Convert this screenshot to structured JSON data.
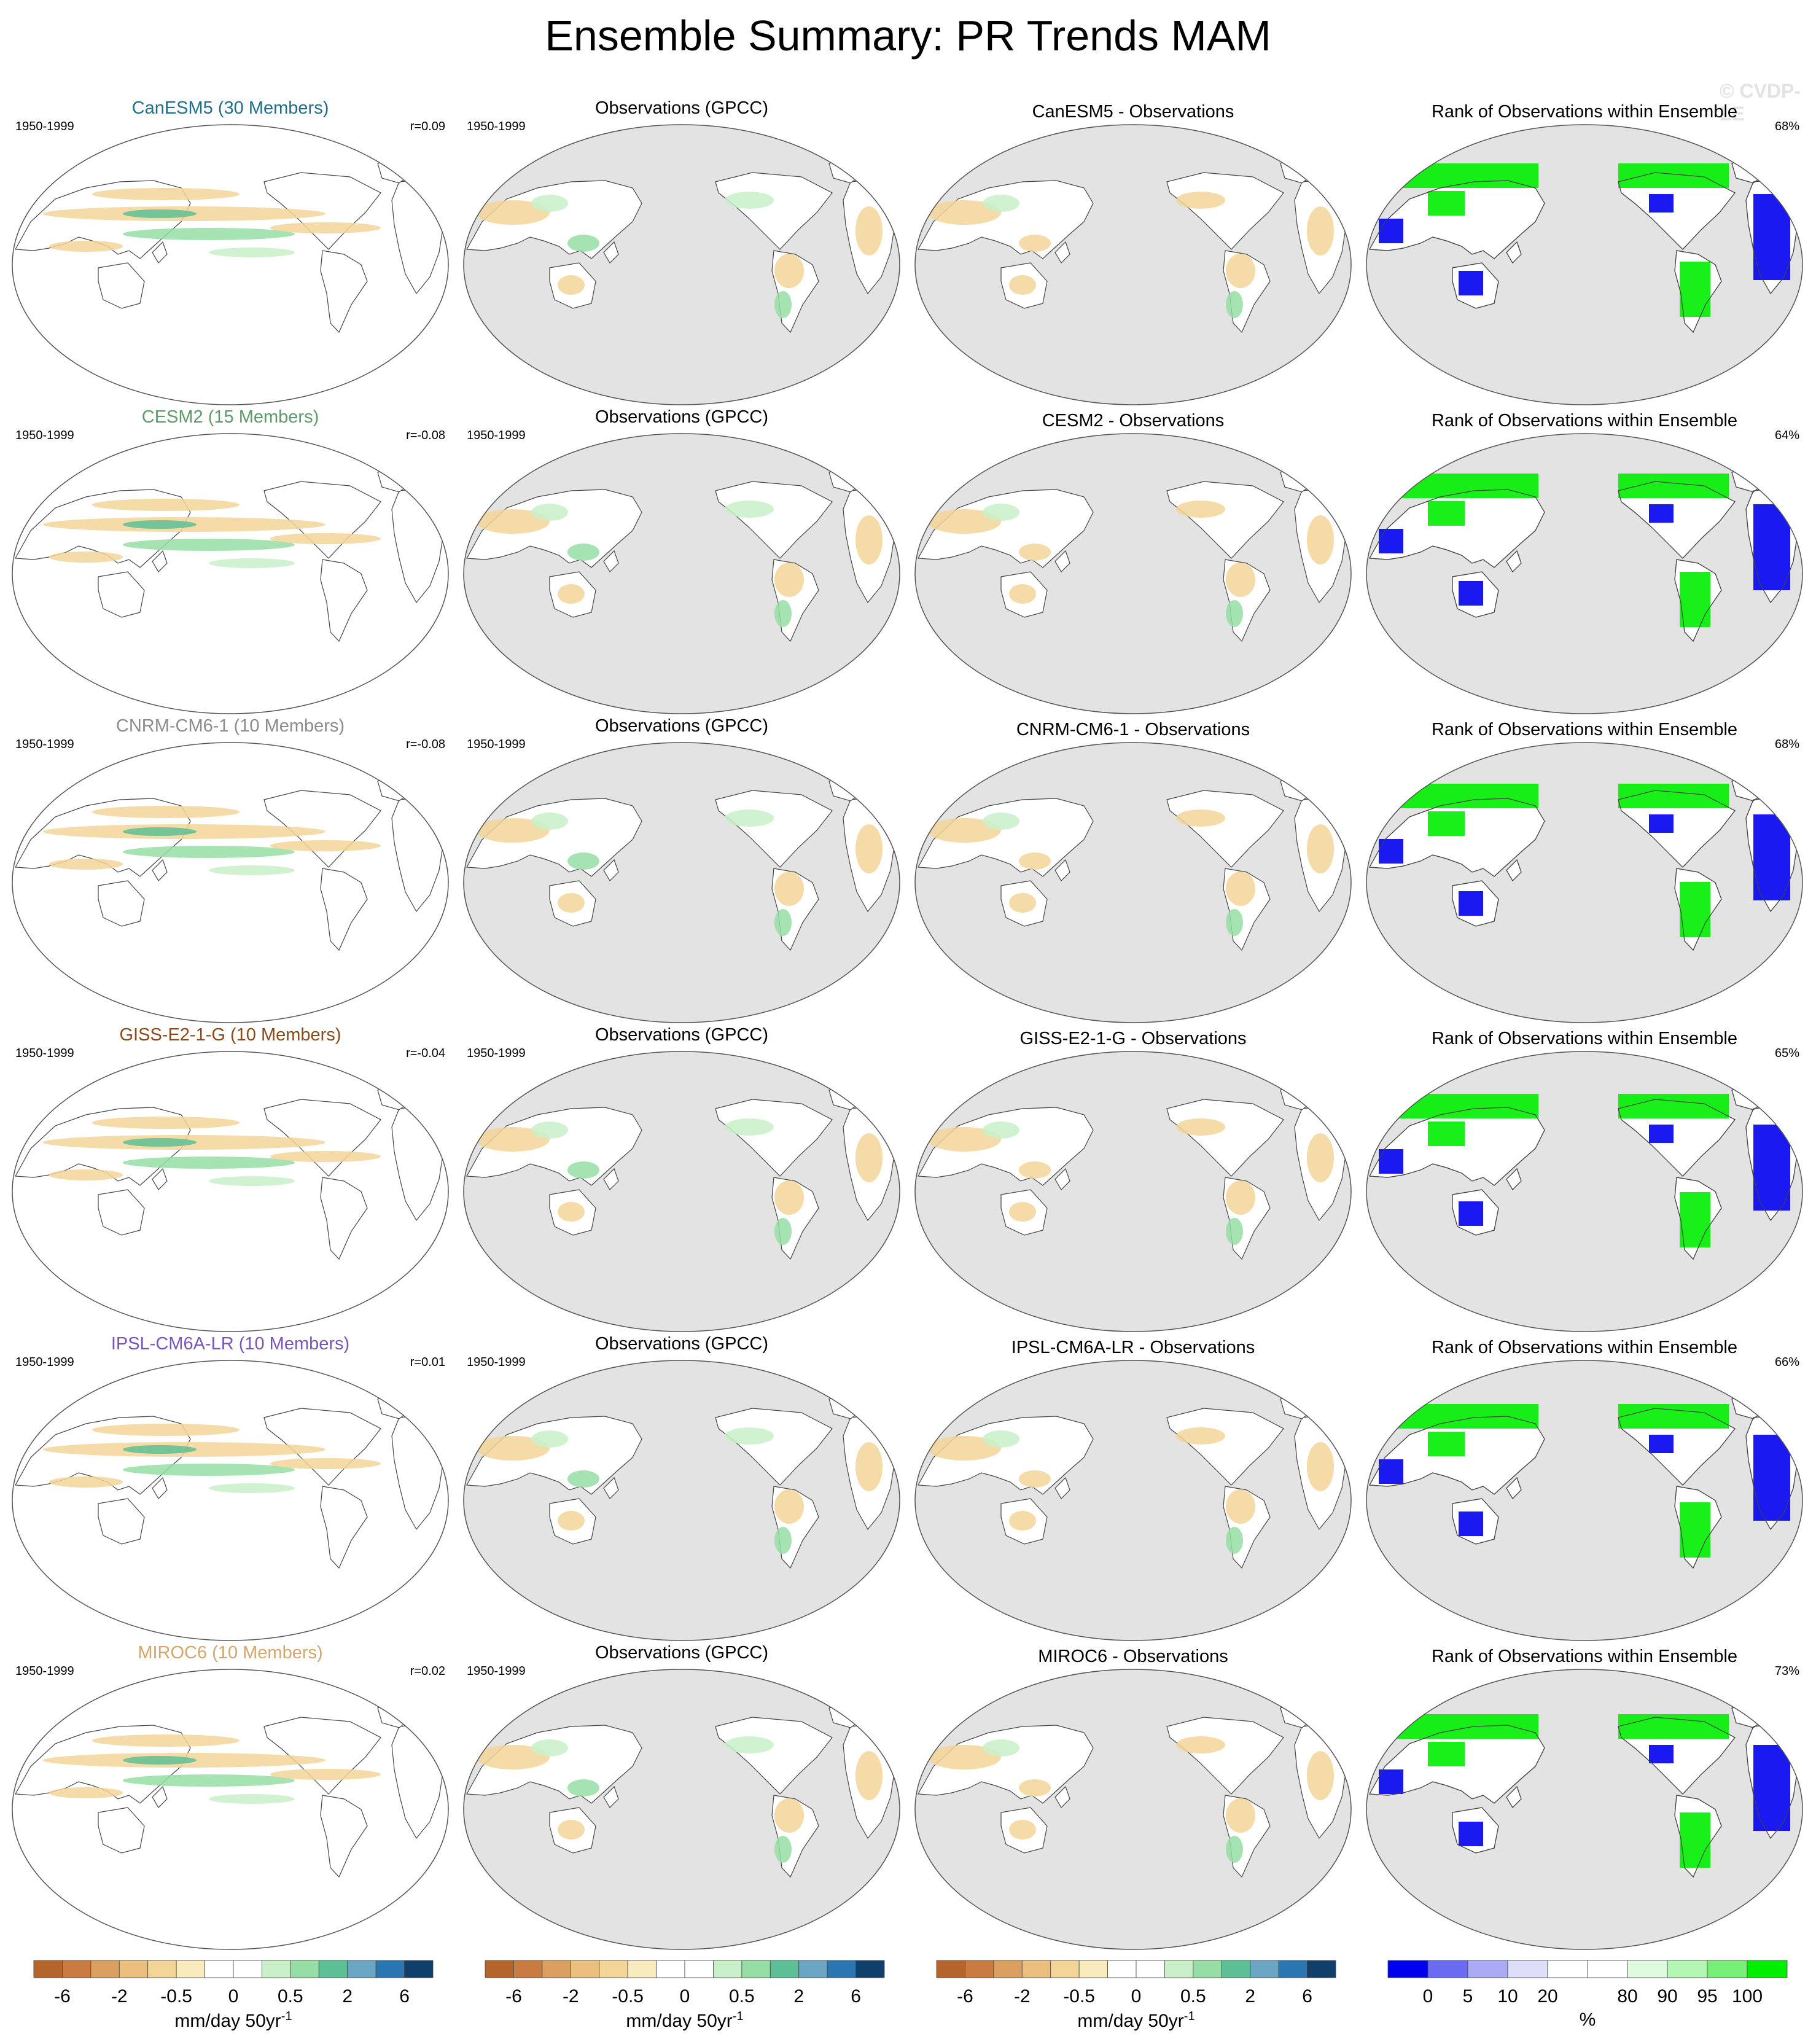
{
  "title": "Ensemble Summary: PR Trends MAM",
  "watermark": "© CVDP-LE",
  "panel_titles": {
    "observations": "Observations (GPCC)",
    "rank": "Rank of Observations within Ensemble"
  },
  "rows": [
    {
      "model_label": "CanESM5 (30 Members)",
      "model_color": "#1f6f8b",
      "period": "1950-1999",
      "r_label": "r=0.09",
      "diff_title": "CanESM5 - Observations",
      "rank_pct": "68%"
    },
    {
      "model_label": "CESM2 (15 Members)",
      "model_color": "#5c9a6a",
      "period": "1950-1999",
      "r_label": "r=-0.08",
      "diff_title": "CESM2 - Observations",
      "rank_pct": "64%"
    },
    {
      "model_label": "CNRM-CM6-1 (10 Members)",
      "model_color": "#8c8c8c",
      "period": "1950-1999",
      "r_label": "r=-0.08",
      "diff_title": "CNRM-CM6-1 - Observations",
      "rank_pct": "68%"
    },
    {
      "model_label": "GISS-E2-1-G (10 Members)",
      "model_color": "#8b4a1a",
      "period": "1950-1999",
      "r_label": "r=-0.04",
      "diff_title": "GISS-E2-1-G - Observations",
      "rank_pct": "65%"
    },
    {
      "model_label": "IPSL-CM6A-LR (10 Members)",
      "model_color": "#7a55c0",
      "period": "1950-1999",
      "r_label": "r=0.01",
      "diff_title": "IPSL-CM6A-LR - Observations",
      "rank_pct": "66%"
    },
    {
      "model_label": "MIROC6 (10 Members)",
      "model_color": "#d4a66a",
      "period": "1950-1999",
      "r_label": "r=0.02",
      "diff_title": "MIROC6 - Observations",
      "rank_pct": "73%"
    }
  ],
  "colorbars": {
    "trend": {
      "colors": [
        "#b5652a",
        "#c97b40",
        "#dba060",
        "#ebc07e",
        "#f3d598",
        "#f8ecbf",
        "#ffffff",
        "#ffffff",
        "#c9f0c9",
        "#96dea6",
        "#5dbf95",
        "#6aa6c4",
        "#2a76b0",
        "#0f3f6a"
      ],
      "tick_labels": [
        "-6",
        "-2",
        "-0.5",
        "0",
        "0.5",
        "2",
        "6"
      ],
      "unit": "mm/day 50yr",
      "unit_superscript": "-1"
    },
    "rank": {
      "colors": [
        "#0000ee",
        "#6a6af2",
        "#aaaaf6",
        "#dedefa",
        "#ffffff",
        "#ffffff",
        "#e0fae0",
        "#b4f7b4",
        "#78f078",
        "#00ee00"
      ],
      "tick_labels": [
        "0",
        "5",
        "10",
        "20",
        "80",
        "90",
        "95",
        "100"
      ],
      "unit": "%"
    }
  },
  "map_colors": {
    "ocean_gray": "#e3e3e3",
    "dry": "#f3d598",
    "dry_strong": "#dba060",
    "wet": "#c9f0c9",
    "wet_mid": "#96dea6",
    "wet_strong": "#5dbf95",
    "rank_high": "#00ee00",
    "rank_low": "#0000ee"
  }
}
